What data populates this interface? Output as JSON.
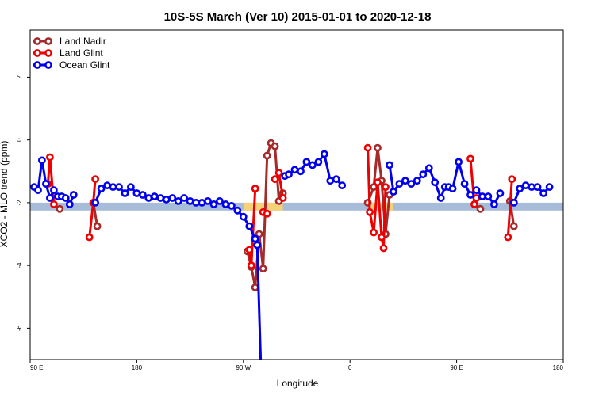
{
  "chart_data": {
    "type": "line",
    "title": "10S-5S March (Ver 10)   2015-01-01 to 2020-12-18",
    "xlabel": "Longitude",
    "ylabel": "XCO2 - MLO trend (ppm)",
    "xlim": [
      -90,
      180
    ],
    "ylim": [
      -7,
      3.5
    ],
    "xticks": [
      {
        "value": -90,
        "label": "90 E"
      },
      {
        "value": -36,
        "label": "180"
      },
      {
        "value": 18,
        "label": "90 W"
      },
      {
        "value": 72,
        "label": "0"
      },
      {
        "value": 126,
        "label": "90 E"
      },
      {
        "value": 180,
        "label": "180"
      }
    ],
    "yticks": [
      {
        "value": 2,
        "label": "2"
      },
      {
        "value": 0,
        "label": "0"
      },
      {
        "value": -2,
        "label": "-2"
      },
      {
        "value": -4,
        "label": "-4"
      },
      {
        "value": -6,
        "label": "-6"
      }
    ],
    "band": {
      "y_from": -2.25,
      "y_to": -2.0,
      "color": "#a6bcd9"
    },
    "highlights": [
      {
        "x_from": 18,
        "x_to": 38,
        "y_from": -2.25,
        "y_to": -2.0,
        "color": "#f5d27a"
      },
      {
        "x_from": 82,
        "x_to": 94,
        "y_from": -2.25,
        "y_to": -2.0,
        "color": "#f5d27a"
      }
    ],
    "legend_position": "top-left",
    "series": [
      {
        "name": "Land Nadir",
        "color": "#a52a2a",
        "segments": [
          [
            [
              -75,
              -2.2
            ]
          ],
          [
            [
              -58,
              -2.0
            ],
            [
              -56,
              -2.75
            ]
          ],
          [
            [
              20,
              -3.55
            ],
            [
              22,
              -4.05
            ],
            [
              24,
              -4.7
            ],
            [
              26,
              -3.0
            ],
            [
              28,
              -4.1
            ],
            [
              30,
              -0.5
            ],
            [
              32,
              -0.1
            ],
            [
              34,
              -0.2
            ],
            [
              36,
              -1.95
            ],
            [
              38,
              -1.7
            ]
          ],
          [
            [
              81,
              -2.0
            ],
            [
              84,
              -1.5
            ],
            [
              86,
              -0.25
            ],
            [
              88,
              -1.3
            ],
            [
              90,
              -3.0
            ],
            [
              92,
              -1.75
            ]
          ],
          [
            [
              138,
              -2.2
            ]
          ],
          [
            [
              153,
              -1.95
            ],
            [
              155,
              -2.75
            ]
          ]
        ]
      },
      {
        "name": "Land Glint",
        "color": "#ee0000",
        "segments": [
          [
            [
              -81,
              -1.4
            ],
            [
              -80,
              -0.55
            ],
            [
              -78,
              -2.05
            ]
          ],
          [
            [
              -60,
              -3.1
            ],
            [
              -58,
              -2.0
            ],
            [
              -57,
              -1.25
            ]
          ],
          [
            [
              21,
              -3.5
            ],
            [
              22,
              -4.0
            ],
            [
              24,
              -1.55
            ]
          ],
          [
            [
              28,
              -2.3
            ],
            [
              30,
              -2.35
            ]
          ],
          [
            [
              34,
              -1.25
            ],
            [
              36,
              -1.05
            ],
            [
              38,
              -1.85
            ]
          ],
          [
            [
              81,
              -0.25
            ],
            [
              82,
              -2.3
            ],
            [
              84,
              -2.95
            ],
            [
              86,
              -1.35
            ],
            [
              88,
              -3.1
            ],
            [
              89,
              -3.45
            ],
            [
              90,
              -1.5
            ]
          ],
          [
            [
              133,
              -0.6
            ],
            [
              135,
              -2.05
            ],
            [
              136,
              -1.85
            ]
          ],
          [
            [
              152,
              -3.1
            ],
            [
              154,
              -1.25
            ]
          ]
        ]
      },
      {
        "name": "Ocean Glint",
        "color": "#0000ee",
        "segments": [
          [
            [
              -88,
              -1.5
            ],
            [
              -86,
              -1.6
            ],
            [
              -84,
              -0.65
            ],
            [
              -82,
              -1.4
            ],
            [
              -80,
              -1.85
            ],
            [
              -78,
              -1.6
            ],
            [
              -76,
              -1.8
            ],
            [
              -74,
              -1.8
            ],
            [
              -72,
              -1.85
            ],
            [
              -70,
              -2.05
            ],
            [
              -68,
              -1.75
            ]
          ],
          [
            [
              -57,
              -2.0
            ],
            [
              -54,
              -1.55
            ],
            [
              -51,
              -1.45
            ],
            [
              -48,
              -1.5
            ],
            [
              -45,
              -1.5
            ],
            [
              -42,
              -1.7
            ],
            [
              -39,
              -1.5
            ],
            [
              -36,
              -1.7
            ],
            [
              -33,
              -1.75
            ],
            [
              -30,
              -1.85
            ],
            [
              -27,
              -1.8
            ],
            [
              -24,
              -1.85
            ],
            [
              -21,
              -1.9
            ],
            [
              -18,
              -1.85
            ],
            [
              -15,
              -1.95
            ],
            [
              -12,
              -1.85
            ],
            [
              -9,
              -1.95
            ],
            [
              -6,
              -2.0
            ],
            [
              -3,
              -2.0
            ],
            [
              0,
              -1.95
            ],
            [
              3,
              -2.05
            ],
            [
              6,
              -1.95
            ],
            [
              9,
              -2.05
            ],
            [
              12,
              -2.1
            ],
            [
              15,
              -2.25
            ],
            [
              18,
              -2.45
            ],
            [
              21,
              -2.75
            ],
            [
              24,
              -3.15
            ],
            [
              25,
              -3.35
            ],
            [
              27,
              -7.5
            ]
          ],
          [
            [
              39,
              -1.15
            ],
            [
              41,
              -1.1
            ],
            [
              44,
              -0.95
            ],
            [
              47,
              -1.0
            ],
            [
              50,
              -0.7
            ],
            [
              53,
              -0.8
            ],
            [
              56,
              -0.7
            ],
            [
              59,
              -0.45
            ],
            [
              62,
              -1.3
            ],
            [
              65,
              -1.25
            ],
            [
              68,
              -1.45
            ]
          ],
          [
            [
              92,
              -0.8
            ],
            [
              94,
              -1.65
            ],
            [
              97,
              -1.4
            ],
            [
              100,
              -1.3
            ],
            [
              103,
              -1.4
            ],
            [
              106,
              -1.3
            ],
            [
              109,
              -1.1
            ],
            [
              112,
              -0.9
            ],
            [
              115,
              -1.35
            ],
            [
              118,
              -1.85
            ],
            [
              120,
              -1.5
            ],
            [
              122,
              -1.5
            ],
            [
              124,
              -1.55
            ],
            [
              127,
              -0.7
            ],
            [
              130,
              -1.4
            ],
            [
              133,
              -1.75
            ],
            [
              136,
              -1.6
            ],
            [
              139,
              -1.8
            ],
            [
              142,
              -1.8
            ],
            [
              145,
              -2.05
            ],
            [
              148,
              -1.7
            ]
          ],
          [
            [
              155,
              -2.0
            ],
            [
              158,
              -1.55
            ],
            [
              161,
              -1.45
            ],
            [
              164,
              -1.5
            ],
            [
              167,
              -1.5
            ],
            [
              170,
              -1.7
            ],
            [
              173,
              -1.5
            ]
          ]
        ]
      }
    ]
  }
}
